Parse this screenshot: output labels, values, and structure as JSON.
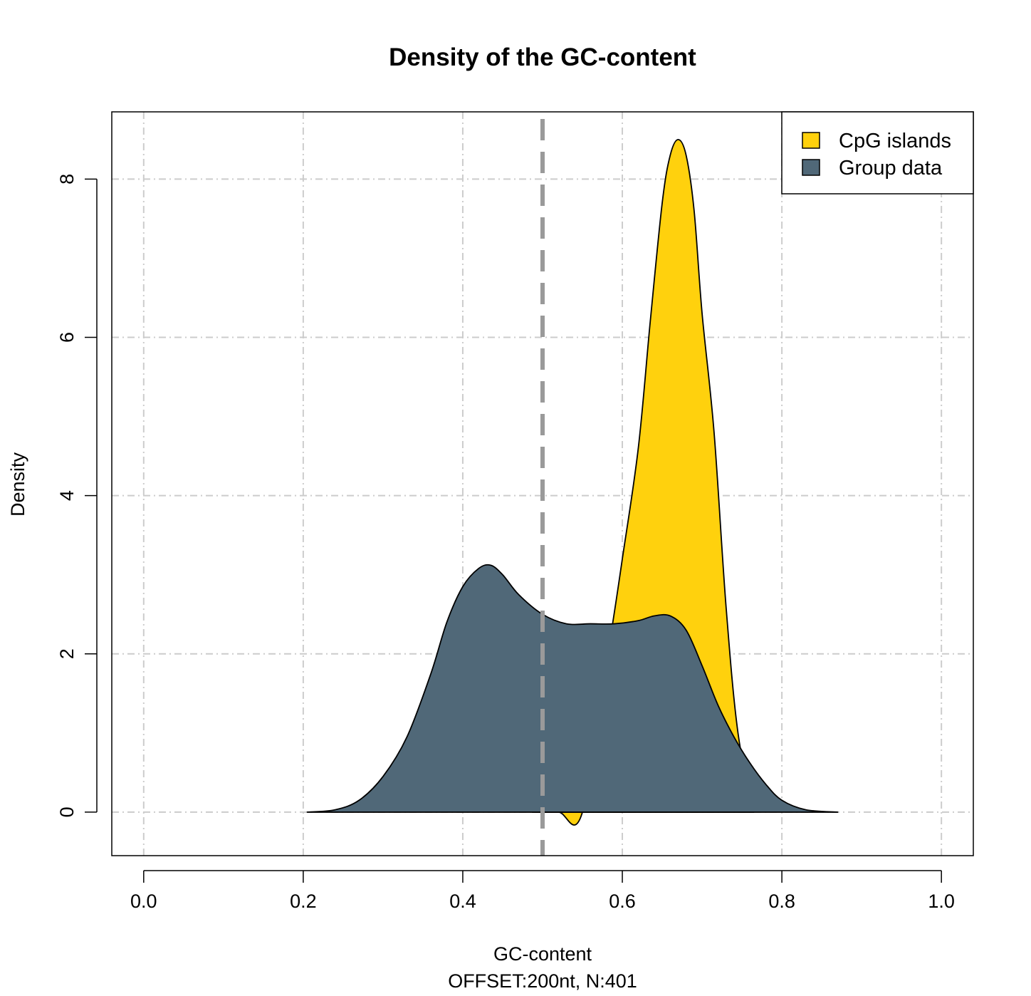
{
  "chart_data": {
    "type": "area",
    "title": "Density of the GC-content",
    "xlabel": "GC-content",
    "subtitle": "OFFSET:200nt, N:401",
    "ylabel": "Density",
    "xlim": [
      -0.04,
      1.04
    ],
    "ylim": [
      -0.55,
      8.85
    ],
    "x_ticks": [
      0.0,
      0.2,
      0.4,
      0.6,
      0.8,
      1.0
    ],
    "x_tick_labels": [
      "0.0",
      "0.2",
      "0.4",
      "0.6",
      "0.8",
      "1.0"
    ],
    "y_ticks": [
      0,
      2,
      4,
      6,
      8
    ],
    "y_tick_labels": [
      "0",
      "2",
      "4",
      "6",
      "8"
    ],
    "grid": true,
    "legend_position": "top-right",
    "reference_line_x": 0.5,
    "series": [
      {
        "name": "CpG islands",
        "color": "#FFD10D",
        "x": [
          0.487,
          0.52,
          0.55,
          0.585,
          0.6,
          0.62,
          0.635,
          0.65,
          0.66,
          0.67,
          0.68,
          0.69,
          0.7,
          0.715,
          0.73,
          0.745,
          0.765
        ],
        "y": [
          0.0,
          0.0,
          0.0,
          2.2,
          3.2,
          4.6,
          6.2,
          7.7,
          8.3,
          8.5,
          8.3,
          7.6,
          6.3,
          4.8,
          2.6,
          1.0,
          0.0
        ]
      },
      {
        "name": "Group data",
        "color": "#506878",
        "x": [
          0.205,
          0.24,
          0.27,
          0.3,
          0.33,
          0.36,
          0.38,
          0.4,
          0.42,
          0.435,
          0.45,
          0.47,
          0.5,
          0.53,
          0.56,
          0.59,
          0.62,
          0.64,
          0.66,
          0.68,
          0.7,
          0.72,
          0.74,
          0.76,
          0.78,
          0.8,
          0.83,
          0.87
        ],
        "y": [
          0.0,
          0.03,
          0.15,
          0.45,
          0.95,
          1.75,
          2.4,
          2.85,
          3.08,
          3.12,
          3.0,
          2.75,
          2.5,
          2.38,
          2.38,
          2.38,
          2.42,
          2.48,
          2.48,
          2.3,
          1.85,
          1.35,
          0.95,
          0.62,
          0.35,
          0.15,
          0.03,
          0.0
        ]
      }
    ]
  }
}
